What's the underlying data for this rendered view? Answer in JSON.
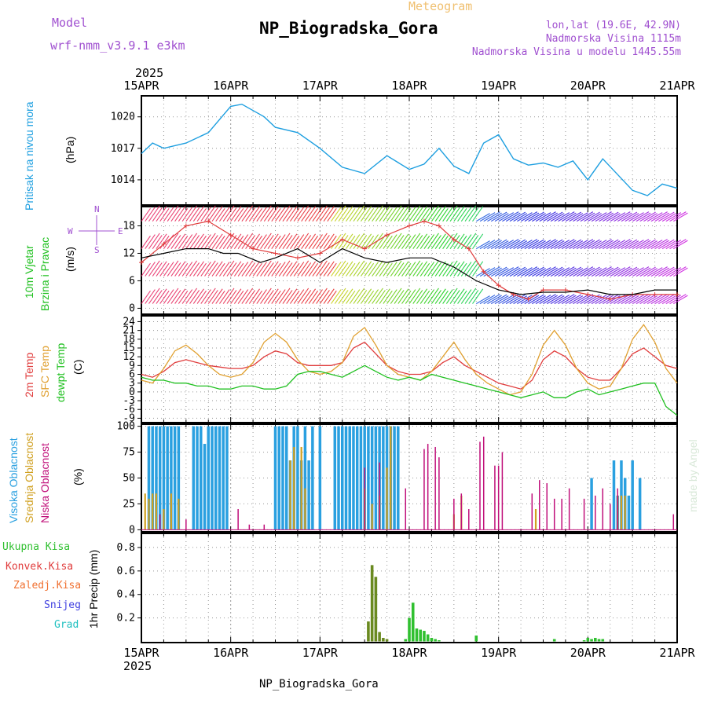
{
  "header": {
    "model_label": "Model",
    "model_name": "wrf-nmm_v3.9.1 e3km",
    "meteogram_label": "Meteogram",
    "station_title": "NP_Biogradska_Gora",
    "lonlat": "lon,lat (19.6E, 42.9N)",
    "altitude": "Nadmorska Visina 1115m",
    "model_altitude": "Nadmorska Visina u modelu 1445.55m"
  },
  "footer": {
    "station": "NP_Biogradska_Gora"
  },
  "watermark": "made by Angel",
  "wind_compass": {
    "n": "N",
    "s": "S",
    "e": "E",
    "w": "W"
  },
  "colors": {
    "pressure": "#1e9fe0",
    "wind_speed": "#000000",
    "gust": "#e03c3c",
    "t2m": "#e03c3c",
    "tsfc": "#e0a030",
    "dewpt": "#20c020",
    "high_cloud": "#2aa0e0",
    "mid_cloud": "#d0a020",
    "low_cloud": "#c0107a",
    "total_precip": "#30c030",
    "grid": "#999999"
  },
  "chart_data": [
    {
      "type": "line",
      "panel": "pressure",
      "year": "2025",
      "x_ticks": [
        "15APR",
        "16APR",
        "17APR",
        "18APR",
        "19APR",
        "20APR",
        "21APR"
      ],
      "ylabel_lines": [
        "Pritisak na nivou mora",
        "(hPa)"
      ],
      "y_ticks": [
        1014,
        1017,
        1020
      ],
      "ylim": [
        1011.6,
        1022
      ],
      "series": [
        {
          "name": "Pritisak na nivou mora",
          "x_hours": [
            0,
            3,
            6,
            12,
            18,
            24,
            27,
            33,
            36,
            42,
            48,
            54,
            60,
            66,
            72,
            76,
            80,
            84,
            88,
            92,
            96,
            100,
            104,
            108,
            112,
            116,
            120,
            124,
            128,
            132,
            136,
            140,
            144
          ],
          "values": [
            1016.5,
            1017.5,
            1017,
            1017.5,
            1018.5,
            1021,
            1021.2,
            1020,
            1019,
            1018.5,
            1017,
            1015.2,
            1014.6,
            1016.3,
            1015,
            1015.5,
            1017,
            1015.3,
            1014.6,
            1017.5,
            1018.3,
            1016,
            1015.4,
            1015.6,
            1015.2,
            1015.8,
            1014,
            1016,
            1014.5,
            1013,
            1012.5,
            1013.6,
            1013.2
          ]
        }
      ]
    },
    {
      "type": "line",
      "panel": "wind",
      "ylabel_lines": [
        "10m Vjetar",
        "Brzina i Pravac",
        "(m/s)"
      ],
      "y_ticks": [
        0,
        6,
        12,
        18
      ],
      "ylim": [
        -1.3,
        22.2
      ],
      "series": [
        {
          "name": "Brzina vjetra",
          "x_hours": [
            0,
            6,
            12,
            18,
            22,
            26,
            32,
            36,
            42,
            48,
            54,
            60,
            66,
            72,
            78,
            84,
            90,
            96,
            102,
            108,
            114,
            120,
            126,
            132,
            138,
            144
          ],
          "values": [
            11,
            12,
            13,
            13,
            12,
            12,
            10,
            11,
            13,
            10,
            13,
            11,
            10,
            11,
            11,
            9,
            6,
            4,
            3,
            3.5,
            3.5,
            4,
            3,
            3,
            4,
            4
          ]
        },
        {
          "name": "Udari vjetra",
          "x_hours": [
            0,
            6,
            12,
            18,
            24,
            30,
            36,
            42,
            48,
            54,
            60,
            66,
            72,
            76,
            80,
            84,
            88,
            92,
            96,
            100,
            104,
            108,
            114,
            120,
            126,
            132,
            138,
            144
          ],
          "values": [
            10,
            14,
            18,
            19,
            16,
            13,
            12,
            11,
            12,
            15,
            13,
            16,
            18,
            19,
            18,
            15,
            13,
            8,
            5,
            3,
            2,
            4,
            4,
            3,
            2,
            3,
            3,
            3
          ]
        }
      ]
    },
    {
      "type": "line",
      "panel": "temperature",
      "ylabel_lines": [
        "2m Temp",
        "SFC Temp",
        "dewpt Temp",
        "(C)"
      ],
      "y_ticks": [
        -9,
        -6,
        -3,
        0,
        3,
        6,
        9,
        12,
        15,
        18,
        21,
        24
      ],
      "ylim": [
        -10.5,
        26
      ],
      "series": [
        {
          "name": "2m Temp",
          "x_hours": [
            0,
            3,
            6,
            9,
            12,
            15,
            18,
            21,
            24,
            27,
            30,
            33,
            36,
            39,
            42,
            45,
            48,
            51,
            54,
            57,
            60,
            63,
            66,
            69,
            72,
            75,
            78,
            81,
            84,
            87,
            90,
            93,
            96,
            99,
            102,
            105,
            108,
            111,
            114,
            117,
            120,
            123,
            126,
            129,
            132,
            135,
            138,
            141,
            144
          ],
          "values": [
            6,
            5,
            7,
            10,
            11,
            10,
            9,
            8.5,
            8,
            8,
            9,
            12,
            14,
            13,
            10,
            9,
            9,
            9,
            10,
            15,
            17,
            13,
            9,
            7,
            6,
            6,
            7,
            10,
            12,
            9,
            7,
            5,
            3,
            2,
            1,
            4,
            11,
            14,
            12,
            8,
            5,
            4,
            4,
            8,
            13,
            15,
            12,
            9,
            8
          ]
        },
        {
          "name": "SFC Temp",
          "x_hours": [
            0,
            3,
            6,
            9,
            12,
            15,
            18,
            21,
            24,
            27,
            30,
            33,
            36,
            39,
            42,
            45,
            48,
            51,
            54,
            57,
            60,
            63,
            66,
            69,
            72,
            75,
            78,
            81,
            84,
            87,
            90,
            93,
            96,
            99,
            102,
            105,
            108,
            111,
            114,
            117,
            120,
            123,
            126,
            129,
            132,
            135,
            138,
            141,
            144
          ],
          "values": [
            4,
            3,
            8,
            14,
            16,
            13,
            9,
            6,
            5,
            6,
            10,
            17,
            20,
            17,
            11,
            7,
            6,
            7,
            10,
            19,
            22,
            16,
            9,
            6,
            5,
            4,
            7,
            12,
            17,
            11,
            6,
            3,
            1,
            -1,
            0,
            6,
            16,
            21,
            16,
            8,
            3,
            1,
            2,
            8,
            18,
            23,
            17,
            8,
            3
          ]
        },
        {
          "name": "dewpt Temp",
          "x_hours": [
            0,
            3,
            6,
            9,
            12,
            15,
            18,
            21,
            24,
            27,
            30,
            33,
            36,
            39,
            42,
            45,
            48,
            51,
            54,
            57,
            60,
            63,
            66,
            69,
            72,
            75,
            78,
            81,
            84,
            87,
            90,
            93,
            96,
            99,
            102,
            105,
            108,
            111,
            114,
            117,
            120,
            123,
            126,
            129,
            132,
            135,
            138,
            141,
            144
          ],
          "values": [
            5,
            4,
            4,
            3,
            3,
            2,
            2,
            1,
            1,
            2,
            2,
            1,
            1,
            2,
            6,
            7,
            7,
            6,
            5,
            7,
            9,
            7,
            5,
            4,
            5,
            4,
            6,
            5,
            4,
            3,
            2,
            1,
            0,
            -1,
            -2,
            -1,
            0,
            -2,
            -2,
            0,
            1,
            -1,
            0,
            1,
            2,
            3,
            3,
            -5,
            -8
          ]
        }
      ]
    },
    {
      "type": "bar",
      "panel": "cloud",
      "ylabel_lines": [
        "Visoka Oblacnost",
        "Srednja Oblacnost",
        "Niska Oblacnost",
        "(%)"
      ],
      "y_ticks": [
        0,
        25,
        50,
        75,
        100
      ],
      "ylim": [
        -2,
        102
      ],
      "series": [
        {
          "name": "Visoka Oblacnost",
          "x_hours": [
            2,
            3,
            4,
            5,
            6,
            7,
            8,
            9,
            10,
            14,
            15,
            16,
            17,
            18,
            19,
            20,
            21,
            22,
            23,
            36,
            37,
            38,
            39,
            40,
            41,
            42,
            43,
            44,
            45,
            46,
            48,
            52,
            53,
            54,
            55,
            56,
            57,
            58,
            59,
            60,
            61,
            62,
            63,
            64,
            65,
            66,
            67,
            68,
            69,
            121,
            127,
            128,
            129,
            130,
            131,
            132,
            134
          ],
          "values": [
            100,
            100,
            100,
            100,
            100,
            100,
            100,
            100,
            100,
            100,
            100,
            100,
            83,
            100,
            100,
            100,
            100,
            100,
            100,
            100,
            100,
            100,
            100,
            67,
            100,
            100,
            67,
            100,
            67,
            100,
            100,
            100,
            100,
            100,
            100,
            100,
            100,
            100,
            100,
            100,
            100,
            100,
            100,
            100,
            100,
            100,
            100,
            100,
            100,
            50,
            67,
            33,
            67,
            50,
            33,
            67,
            50
          ]
        },
        {
          "name": "Srednja Oblacnost",
          "x_hours": [
            1,
            2,
            3,
            4,
            6,
            8,
            10,
            40,
            41,
            43,
            44,
            60,
            62,
            64,
            66,
            67,
            84,
            86,
            106,
            128,
            129,
            130
          ],
          "values": [
            35,
            30,
            35,
            35,
            20,
            35,
            30,
            67,
            80,
            80,
            40,
            40,
            25,
            33,
            60,
            100,
            15,
            33,
            20,
            33,
            33,
            33
          ]
        },
        {
          "name": "Niska Oblacnost",
          "x_hours": [
            5,
            12,
            26,
            29,
            33,
            60,
            64,
            71,
            76,
            77,
            79,
            80,
            84,
            86,
            88,
            91,
            92,
            95,
            96,
            97,
            105,
            107,
            109,
            111,
            113,
            115,
            119,
            122,
            124,
            126,
            128,
            143
          ],
          "values": [
            15,
            10,
            20,
            5,
            5,
            60,
            65,
            40,
            78,
            83,
            80,
            70,
            30,
            35,
            20,
            85,
            90,
            62,
            62,
            75,
            35,
            48,
            45,
            30,
            30,
            40,
            30,
            33,
            40,
            25,
            40,
            15
          ]
        }
      ]
    },
    {
      "type": "bar",
      "panel": "precip",
      "ylabel_lines": [
        "1hr Precip (mm)"
      ],
      "legend": [
        "Ukupna Kisa",
        "Konvek.Kisa",
        "Zaledj.Kisa",
        "Snijeg",
        "Grad"
      ],
      "y_ticks": [
        0.2,
        0.4,
        0.6,
        0.8
      ],
      "ylim": [
        -0.01,
        0.92
      ],
      "series": [
        {
          "name": "Ukupna Kisa",
          "x_hours": [
            61,
            62,
            63,
            64,
            65,
            66,
            71,
            72,
            73,
            74,
            75,
            76,
            77,
            78,
            79,
            80,
            90,
            111,
            119,
            120,
            121,
            122,
            123,
            124
          ],
          "values": [
            0.17,
            0.65,
            0.55,
            0.08,
            0.03,
            0.02,
            0.02,
            0.2,
            0.33,
            0.11,
            0.1,
            0.09,
            0.06,
            0.03,
            0.02,
            0.01,
            0.05,
            0.02,
            0.01,
            0.03,
            0.02,
            0.03,
            0.02,
            0.02
          ]
        }
      ]
    }
  ]
}
